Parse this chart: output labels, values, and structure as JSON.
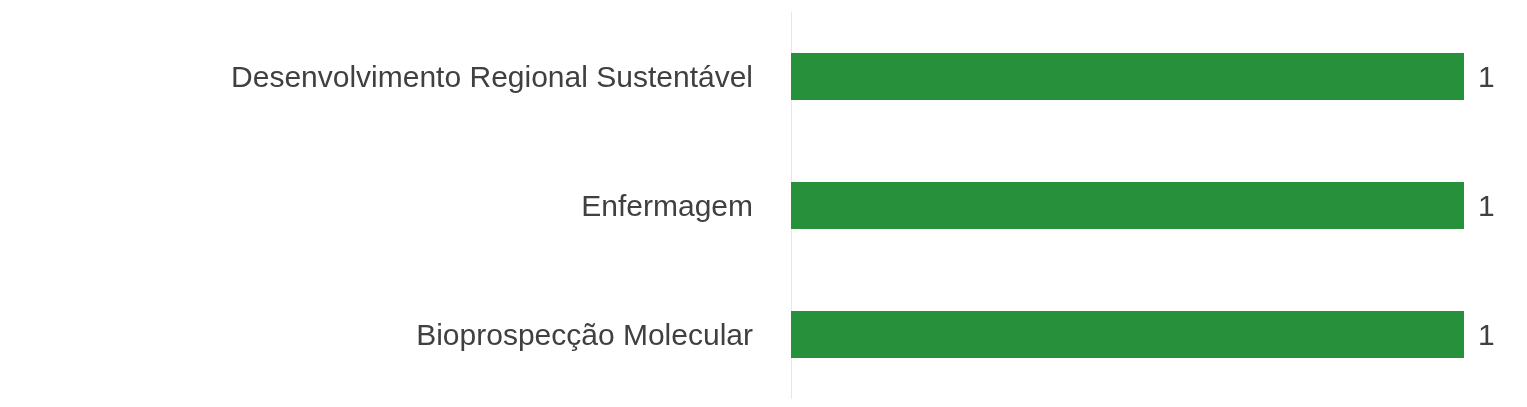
{
  "chart_data": {
    "type": "bar",
    "orientation": "horizontal",
    "categories": [
      "Desenvolvimento Regional Sustentável",
      "Enfermagem",
      "Bioprospecção Molecular"
    ],
    "values": [
      1,
      1,
      1
    ],
    "color": "#26903a",
    "data_labels": true
  }
}
